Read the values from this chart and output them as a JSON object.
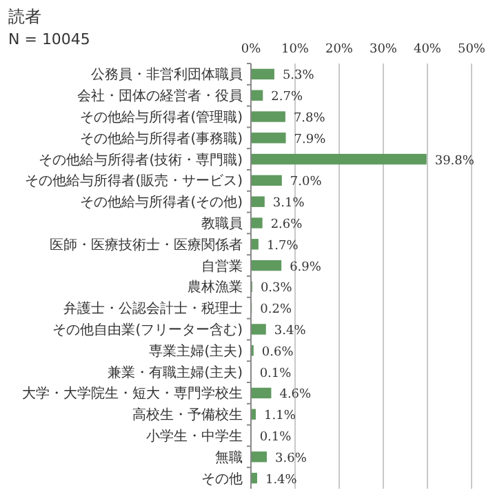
{
  "chart_data": {
    "type": "bar",
    "orientation": "horizontal",
    "title": "読者",
    "annotations": [
      "N = 10045"
    ],
    "categories": [
      "公務員・非営利団体職員",
      "会社・団体の経営者・役員",
      "その他給与所得者(管理職)",
      "その他給与所得者(事務職)",
      "その他給与所得者(技術・専門職)",
      "その他給与所得者(販売・サービス)",
      "その他給与所得者(その他)",
      "教職員",
      "医師・医療技術士・医療関係者",
      "自営業",
      "農林漁業",
      "弁護士・公認会計士・税理士",
      "その他自由業(フリーター含む)",
      "専業主婦(主夫)",
      "兼業・有職主婦(主夫)",
      "大学・大学院生・短大・専門学校生",
      "高校生・予備校生",
      "小学生・中学生",
      "無職",
      "その他"
    ],
    "values": [
      5.3,
      2.7,
      7.8,
      7.9,
      39.8,
      7.0,
      3.1,
      2.6,
      1.7,
      6.9,
      0.3,
      0.2,
      3.4,
      0.6,
      0.1,
      4.6,
      1.1,
      0.1,
      3.6,
      1.4
    ],
    "value_labels": [
      "5.3%",
      "2.7%",
      "7.8%",
      "7.9%",
      "39.8%",
      "7.0%",
      "3.1%",
      "2.6%",
      "1.7%",
      "6.9%",
      "0.3%",
      "0.2%",
      "3.4%",
      "0.6%",
      "0.1%",
      "4.6%",
      "1.1%",
      "0.1%",
      "3.6%",
      "1.4%"
    ],
    "color": "#5f9a5f",
    "xlim": [
      0,
      50
    ],
    "xticks": [
      {
        "value": 0,
        "label": "0%"
      },
      {
        "value": 10,
        "label": "10%"
      },
      {
        "value": 20,
        "label": "20%"
      },
      {
        "value": 30,
        "label": "30%"
      },
      {
        "value": 40,
        "label": "40%"
      },
      {
        "value": 50,
        "label": "50%"
      }
    ],
    "grid": "x"
  }
}
